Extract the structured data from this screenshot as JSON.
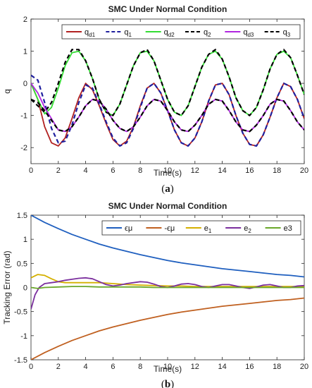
{
  "chart_data": [
    {
      "type": "line",
      "title": "SMC Under Normal Condition",
      "xlabel": "Time(s)",
      "ylabel": "q",
      "xlim": [
        0,
        20
      ],
      "ylim": [
        -2.5,
        2
      ],
      "xticks": [
        0,
        2,
        4,
        6,
        8,
        10,
        12,
        14,
        16,
        18,
        20
      ],
      "yticks": [
        -2,
        -1,
        0,
        1,
        2
      ],
      "grid": false,
      "legend": "top-right",
      "caption": "(a)",
      "series": [
        {
          "name": "q",
          "sub": "d1",
          "color": "#b22222",
          "dash": "solid",
          "x": [
            0,
            0.5,
            1,
            1.5,
            2,
            2.5,
            3,
            3.5,
            4,
            4.5,
            5,
            5.5,
            6,
            6.5,
            7,
            7.5,
            8,
            8.5,
            9,
            9.5,
            10,
            10.5,
            11,
            11.5,
            12,
            12.5,
            13,
            13.5,
            14,
            14.5,
            15,
            15.5,
            16,
            16.5,
            17,
            17.5,
            18,
            18.5,
            19,
            19.5,
            20
          ],
          "y": [
            0,
            -0.5,
            -1.35,
            -1.85,
            -1.95,
            -1.7,
            -1.1,
            -0.45,
            0,
            -0.2,
            -0.7,
            -1.25,
            -1.75,
            -1.95,
            -1.8,
            -1.35,
            -0.7,
            -0.15,
            0,
            -0.3,
            -0.85,
            -1.45,
            -1.85,
            -1.95,
            -1.7,
            -1.2,
            -0.55,
            -0.05,
            0,
            -0.35,
            -1.0,
            -1.55,
            -1.9,
            -1.95,
            -1.6,
            -1.05,
            -0.45,
            0,
            -0.1,
            -0.5,
            -1.1
          ]
        },
        {
          "name": "q",
          "sub": "1",
          "color": "#1f1f9e",
          "dash": "dashed",
          "x": [
            0,
            0.5,
            1,
            1.5,
            2,
            2.5,
            3,
            3.5,
            4,
            4.5,
            5,
            5.5,
            6,
            6.5,
            7,
            7.5,
            8,
            8.5,
            9,
            9.5,
            10,
            10.5,
            11,
            11.5,
            12,
            12.5,
            13,
            13.5,
            14,
            14.5,
            15,
            15.5,
            16,
            16.5,
            17,
            17.5,
            18,
            18.5,
            19,
            19.5,
            20
          ],
          "y": [
            0.25,
            0.1,
            -0.6,
            -1.4,
            -1.85,
            -1.8,
            -1.3,
            -0.6,
            -0.05,
            -0.15,
            -0.65,
            -1.2,
            -1.7,
            -1.95,
            -1.85,
            -1.4,
            -0.75,
            -0.15,
            0,
            -0.3,
            -0.85,
            -1.45,
            -1.85,
            -1.95,
            -1.7,
            -1.2,
            -0.55,
            -0.05,
            0,
            -0.35,
            -1.0,
            -1.55,
            -1.9,
            -1.95,
            -1.6,
            -1.05,
            -0.45,
            0,
            -0.1,
            -0.5,
            -1.1
          ]
        },
        {
          "name": "q",
          "sub": "d2",
          "color": "#33dd33",
          "dash": "solid",
          "x": [
            0,
            0.5,
            1,
            1.5,
            2,
            2.5,
            3,
            3.5,
            4,
            4.5,
            5,
            5.5,
            6,
            6.5,
            7,
            7.5,
            8,
            8.5,
            9,
            9.5,
            10,
            10.5,
            11,
            11.5,
            12,
            12.5,
            13,
            13.5,
            14,
            14.5,
            15,
            15.5,
            16,
            16.5,
            17,
            17.5,
            18,
            18.5,
            19,
            19.5,
            20
          ],
          "y": [
            0,
            -0.5,
            -0.95,
            -0.75,
            -0.15,
            0.55,
            0.95,
            1.0,
            0.7,
            0.15,
            -0.5,
            -0.9,
            -1.0,
            -0.65,
            -0.05,
            0.55,
            0.95,
            1.0,
            0.7,
            0.1,
            -0.5,
            -0.9,
            -1.0,
            -0.7,
            -0.1,
            0.5,
            0.9,
            1.0,
            0.75,
            0.2,
            -0.45,
            -0.85,
            -1.0,
            -0.75,
            -0.2,
            0.45,
            0.9,
            1.0,
            0.8,
            0.25,
            -0.35
          ]
        },
        {
          "name": "q",
          "sub": "2",
          "color": "#000000",
          "dash": "dashed",
          "x": [
            0,
            0.5,
            1,
            1.5,
            2,
            2.5,
            3,
            3.5,
            4,
            4.5,
            5,
            5.5,
            6,
            6.5,
            7,
            7.5,
            8,
            8.5,
            9,
            9.5,
            10,
            10.5,
            11,
            11.5,
            12,
            12.5,
            13,
            13.5,
            14,
            14.5,
            15,
            15.5,
            16,
            16.5,
            17,
            17.5,
            18,
            18.5,
            19,
            19.5,
            20
          ],
          "y": [
            -0.5,
            -0.7,
            -0.9,
            -0.6,
            0.0,
            0.65,
            1.05,
            1.05,
            0.7,
            0.15,
            -0.5,
            -0.9,
            -1.0,
            -0.65,
            -0.05,
            0.55,
            0.95,
            1.05,
            0.7,
            0.1,
            -0.5,
            -0.9,
            -1.0,
            -0.7,
            -0.1,
            0.5,
            0.9,
            1.05,
            0.75,
            0.2,
            -0.45,
            -0.85,
            -1.0,
            -0.75,
            -0.2,
            0.45,
            0.9,
            1.05,
            0.8,
            0.25,
            -0.35
          ]
        },
        {
          "name": "q",
          "sub": "d3",
          "color": "#b026e0",
          "dash": "solid",
          "x": [
            0,
            0.5,
            1,
            1.5,
            2,
            2.5,
            3,
            3.5,
            4,
            4.5,
            5,
            5.5,
            6,
            6.5,
            7,
            7.5,
            8,
            8.5,
            9,
            9.5,
            10,
            10.5,
            11,
            11.5,
            12,
            12.5,
            13,
            13.5,
            14,
            14.5,
            15,
            15.5,
            16,
            16.5,
            17,
            17.5,
            18,
            18.5,
            19,
            19.5,
            20
          ],
          "y": [
            0,
            -0.3,
            -0.75,
            -1.1,
            -1.45,
            -1.5,
            -1.35,
            -1.05,
            -0.7,
            -0.5,
            -0.55,
            -0.8,
            -1.15,
            -1.4,
            -1.5,
            -1.35,
            -1.05,
            -0.7,
            -0.5,
            -0.55,
            -0.85,
            -1.2,
            -1.45,
            -1.5,
            -1.3,
            -1.0,
            -0.65,
            -0.5,
            -0.55,
            -0.85,
            -1.2,
            -1.45,
            -1.5,
            -1.3,
            -1.0,
            -0.65,
            -0.5,
            -0.55,
            -0.85,
            -1.2,
            -1.45
          ]
        },
        {
          "name": "q",
          "sub": "3",
          "color": "#000000",
          "dash": "dashed",
          "x": [
            0,
            0.5,
            1,
            1.5,
            2,
            2.5,
            3,
            3.5,
            4,
            4.5,
            5,
            5.5,
            6,
            6.5,
            7,
            7.5,
            8,
            8.5,
            9,
            9.5,
            10,
            10.5,
            11,
            11.5,
            12,
            12.5,
            13,
            13.5,
            14,
            14.5,
            15,
            15.5,
            16,
            16.5,
            17,
            17.5,
            18,
            18.5,
            19,
            19.5,
            20
          ],
          "y": [
            -0.5,
            -0.6,
            -0.85,
            -1.15,
            -1.45,
            -1.5,
            -1.35,
            -1.05,
            -0.7,
            -0.5,
            -0.55,
            -0.8,
            -1.15,
            -1.4,
            -1.5,
            -1.35,
            -1.05,
            -0.7,
            -0.5,
            -0.55,
            -0.85,
            -1.2,
            -1.45,
            -1.5,
            -1.3,
            -1.0,
            -0.65,
            -0.5,
            -0.55,
            -0.85,
            -1.2,
            -1.45,
            -1.5,
            -1.3,
            -1.0,
            -0.65,
            -0.5,
            -0.55,
            -0.85,
            -1.2,
            -1.45
          ]
        }
      ]
    },
    {
      "type": "line",
      "title": "SMC Under Normal Condition",
      "xlabel": "Time(s)",
      "ylabel": "Tracking Error (rad)",
      "xlim": [
        0,
        20
      ],
      "ylim": [
        -1.5,
        1.5
      ],
      "xticks": [
        0,
        2,
        4,
        6,
        8,
        10,
        12,
        14,
        16,
        18,
        20
      ],
      "yticks": [
        -1.5,
        -1,
        -0.5,
        0,
        0.5,
        1,
        1.5
      ],
      "grid": false,
      "legend": "top",
      "caption": "(b)",
      "series": [
        {
          "name": "ϵμ",
          "sub": "",
          "color": "#1f5fbf",
          "dash": "solid",
          "x": [
            0,
            1,
            2,
            3,
            4,
            5,
            6,
            7,
            8,
            9,
            10,
            11,
            12,
            13,
            14,
            15,
            16,
            17,
            18,
            19,
            20
          ],
          "y": [
            1.5,
            1.35,
            1.22,
            1.1,
            1.0,
            0.9,
            0.82,
            0.75,
            0.68,
            0.62,
            0.56,
            0.51,
            0.47,
            0.43,
            0.39,
            0.36,
            0.33,
            0.3,
            0.27,
            0.25,
            0.22
          ]
        },
        {
          "name": "-ϵμ",
          "sub": "",
          "color": "#c06020",
          "dash": "solid",
          "x": [
            0,
            1,
            2,
            3,
            4,
            5,
            6,
            7,
            8,
            9,
            10,
            11,
            12,
            13,
            14,
            15,
            16,
            17,
            18,
            19,
            20
          ],
          "y": [
            -1.5,
            -1.35,
            -1.22,
            -1.1,
            -1.0,
            -0.9,
            -0.82,
            -0.75,
            -0.68,
            -0.62,
            -0.56,
            -0.51,
            -0.47,
            -0.43,
            -0.39,
            -0.36,
            -0.33,
            -0.3,
            -0.27,
            -0.25,
            -0.22
          ]
        },
        {
          "name": "e",
          "sub": "1",
          "color": "#d4b000",
          "dash": "solid",
          "x": [
            0,
            0.5,
            1,
            1.5,
            2,
            2.5,
            3,
            4,
            5,
            6,
            7,
            8,
            9,
            10,
            11,
            12,
            13,
            14,
            15,
            16,
            17,
            18,
            19,
            20
          ],
          "y": [
            0.2,
            0.27,
            0.25,
            0.18,
            0.12,
            0.1,
            0.1,
            0.1,
            0.1,
            0.08,
            0.06,
            0.05,
            0.04,
            0.03,
            0.03,
            0.02,
            0.02,
            0.02,
            0.02,
            0.02,
            0.02,
            0.02,
            0.02,
            0.02
          ]
        },
        {
          "name": "e",
          "sub": "2",
          "color": "#7b2f9e",
          "dash": "solid",
          "x": [
            0,
            0.3,
            0.6,
            1,
            1.5,
            2,
            2.5,
            3,
            3.5,
            4,
            4.5,
            5,
            5.5,
            6,
            6.5,
            7,
            7.5,
            8,
            8.5,
            9,
            9.5,
            10,
            10.5,
            11,
            11.5,
            12,
            12.5,
            13,
            13.5,
            14,
            14.5,
            15,
            15.5,
            16,
            16.5,
            17,
            17.5,
            18,
            18.5,
            19,
            19.5,
            20
          ],
          "y": [
            -0.45,
            -0.15,
            0.0,
            0.08,
            0.1,
            0.12,
            0.15,
            0.17,
            0.19,
            0.2,
            0.18,
            0.12,
            0.06,
            0.03,
            0.05,
            0.08,
            0.1,
            0.12,
            0.11,
            0.07,
            0.02,
            0.0,
            0.03,
            0.07,
            0.08,
            0.06,
            0.02,
            0.0,
            0.03,
            0.06,
            0.06,
            0.03,
            0.0,
            -0.02,
            0.01,
            0.05,
            0.06,
            0.03,
            0.0,
            0.0,
            0.03,
            0.04
          ]
        },
        {
          "name": "e3",
          "sub": "",
          "color": "#6aa82a",
          "dash": "solid",
          "x": [
            0,
            0.5,
            1,
            2,
            3,
            4,
            5,
            6,
            7,
            8,
            9,
            10,
            11,
            12,
            13,
            14,
            15,
            16,
            17,
            18,
            19,
            20
          ],
          "y": [
            0.0,
            -0.02,
            0.0,
            0.01,
            0.02,
            0.02,
            0.01,
            0.01,
            0.01,
            0.01,
            0.0,
            0.0,
            0.0,
            0.0,
            0.0,
            0.0,
            0.0,
            0.0,
            0.0,
            0.0,
            0.0,
            0.0
          ]
        }
      ]
    }
  ]
}
